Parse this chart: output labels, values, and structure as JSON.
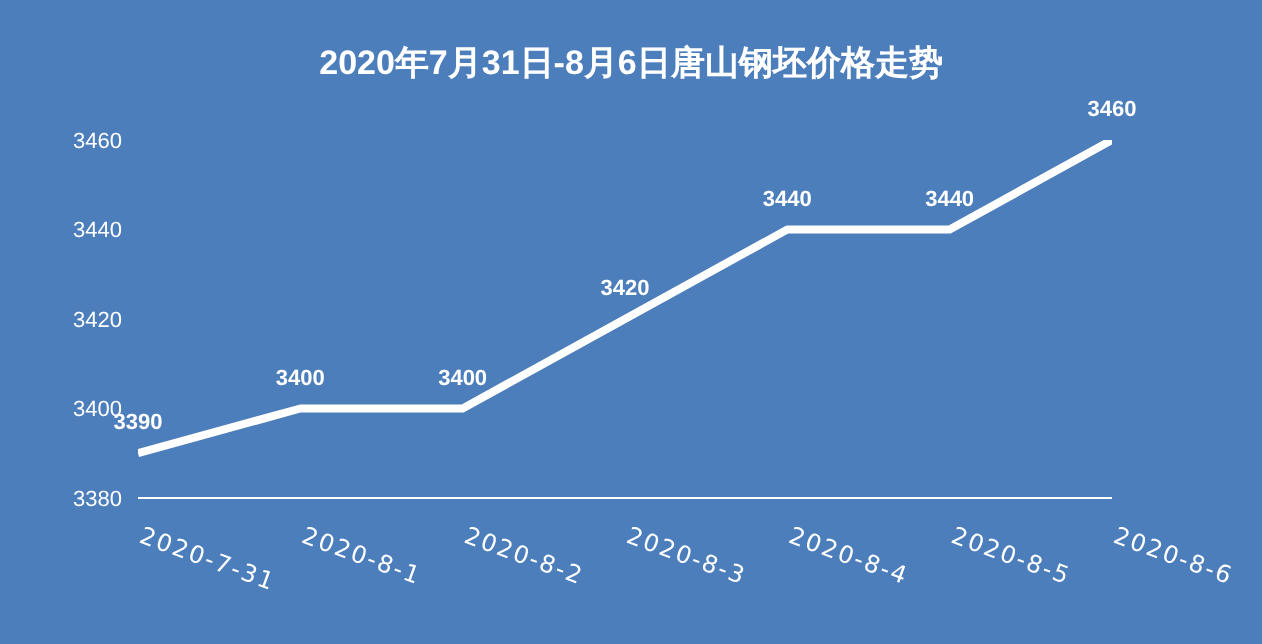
{
  "chart_data": {
    "type": "line",
    "title": "2020年7月31日-8月6日唐山钢坯价格走势",
    "categories": [
      "2020-7-31",
      "2020-8-1",
      "2020-8-2",
      "2020-8-3",
      "2020-8-4",
      "2020-8-5",
      "2020-8-6"
    ],
    "series": [
      {
        "color": "#ffffff",
        "values": [
          3390,
          3400,
          3400,
          3420,
          3440,
          3440,
          3460
        ]
      }
    ],
    "ylim": [
      3380,
      3460
    ],
    "yticks": [
      3380,
      3400,
      3420,
      3440,
      3460
    ],
    "data_labels": true,
    "grid": false,
    "marker": "none",
    "line_style": "solid"
  }
}
